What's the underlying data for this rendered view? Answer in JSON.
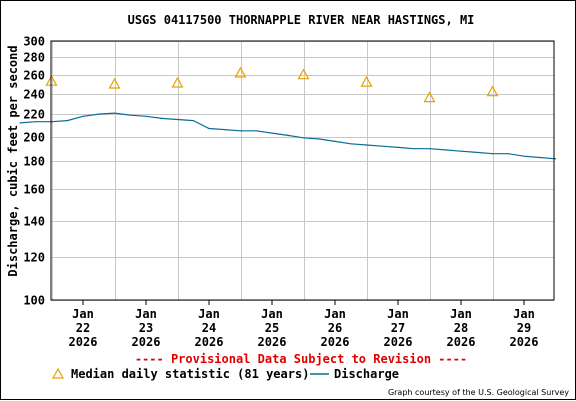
{
  "chart_data": {
    "type": "line",
    "title": "USGS 04117500 THORNAPPLE RIVER NEAR HASTINGS, MI",
    "ylabel": "Discharge, cubic feet per second",
    "y_scale": "log",
    "ylim": [
      100,
      300
    ],
    "y_ticks": [
      100,
      120,
      140,
      160,
      180,
      200,
      220,
      240,
      260,
      280,
      300
    ],
    "x_ticks": [
      {
        "month": "Jan",
        "day": "22",
        "year": "2026"
      },
      {
        "month": "Jan",
        "day": "23",
        "year": "2026"
      },
      {
        "month": "Jan",
        "day": "24",
        "year": "2026"
      },
      {
        "month": "Jan",
        "day": "25",
        "year": "2026"
      },
      {
        "month": "Jan",
        "day": "26",
        "year": "2026"
      },
      {
        "month": "Jan",
        "day": "27",
        "year": "2026"
      },
      {
        "month": "Jan",
        "day": "28",
        "year": "2026"
      },
      {
        "month": "Jan",
        "day": "29",
        "year": "2026"
      }
    ],
    "grid": true,
    "series": [
      {
        "name": "Median daily statistic (81 years)",
        "marker": "triangle",
        "color": "#e8a000",
        "x": [
          "2026-01-21 12:00",
          "2026-01-22 12:00",
          "2026-01-23 12:00",
          "2026-01-24 12:00",
          "2026-01-25 12:00",
          "2026-01-26 12:00",
          "2026-01-27 12:00",
          "2026-01-28 12:00"
        ],
        "values": [
          253,
          250,
          251,
          262,
          260,
          252,
          236,
          242
        ]
      },
      {
        "name": "Discharge",
        "color": "#0a6d96",
        "x": [
          "2026-01-21 00:00",
          "2026-01-21 06:00",
          "2026-01-21 12:00",
          "2026-01-21 18:00",
          "2026-01-22 00:00",
          "2026-01-22 06:00",
          "2026-01-22 12:00",
          "2026-01-22 18:00",
          "2026-01-23 00:00",
          "2026-01-23 06:00",
          "2026-01-23 12:00",
          "2026-01-23 18:00",
          "2026-01-24 00:00",
          "2026-01-24 06:00",
          "2026-01-24 12:00",
          "2026-01-24 18:00",
          "2026-01-25 00:00",
          "2026-01-25 06:00",
          "2026-01-25 12:00",
          "2026-01-25 18:00",
          "2026-01-26 00:00",
          "2026-01-26 06:00",
          "2026-01-26 12:00",
          "2026-01-26 18:00",
          "2026-01-27 00:00",
          "2026-01-27 06:00",
          "2026-01-27 12:00",
          "2026-01-27 18:00",
          "2026-01-28 00:00",
          "2026-01-28 06:00",
          "2026-01-28 12:00",
          "2026-01-28 18:00",
          "2026-01-29 00:00",
          "2026-01-29 06:00",
          "2026-01-29 12:00"
        ],
        "values": [
          212,
          213,
          213,
          214,
          218,
          220,
          221,
          219,
          218,
          216,
          215,
          214,
          207,
          206,
          205,
          205,
          203,
          201,
          199,
          198,
          196,
          194,
          193,
          192,
          191,
          190,
          190,
          189,
          188,
          187,
          186,
          186,
          184,
          183,
          182
        ]
      }
    ],
    "legend_position": "bottom"
  },
  "notice": "---- Provisional Data Subject to Revision ----",
  "credit": "Graph courtesy of the U.S. Geological Survey",
  "colors": {
    "notice": "#e00000",
    "median": "#e8a000",
    "discharge": "#0a6d96",
    "grid": "#c8c8c8"
  }
}
